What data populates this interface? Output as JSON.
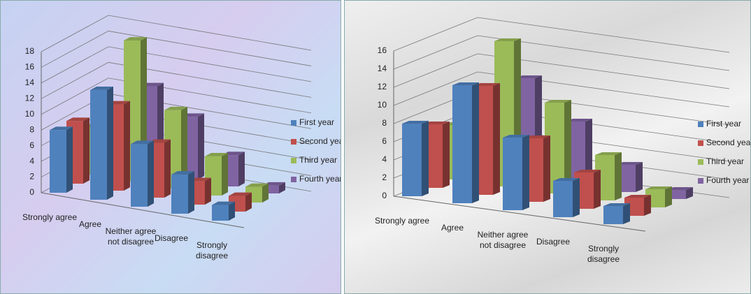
{
  "chart_data": [
    {
      "type": "bar",
      "legend": "right",
      "categories": [
        "Strongly agree",
        "Agree",
        "Neither agree not disagree",
        "Disagree",
        "Strongly disagree"
      ],
      "ylim": [
        0,
        18
      ],
      "yticks": [
        0,
        2,
        4,
        6,
        8,
        10,
        12,
        14,
        16,
        18
      ],
      "grid": true,
      "series": [
        {
          "name": "First year",
          "color": "#4f81bd",
          "values": [
            8,
            14,
            8,
            5,
            2
          ]
        },
        {
          "name": "Second year",
          "color": "#c0504d",
          "values": [
            8,
            11,
            7,
            3,
            2
          ]
        },
        {
          "name": "Third year",
          "color": "#9bbb59",
          "values": [
            6,
            18,
            10,
            5,
            2
          ]
        },
        {
          "name": "Fourth year",
          "color": "#8064a2",
          "values": [
            5,
            11,
            8,
            4,
            1
          ]
        }
      ]
    },
    {
      "type": "bar",
      "legend": "right",
      "categories": [
        "Strongly agree",
        "Agree",
        "Neither agree not disagree",
        "Disagree",
        "Strongly disagree"
      ],
      "ylim": [
        0,
        16
      ],
      "yticks": [
        0,
        2,
        4,
        6,
        8,
        10,
        12,
        14,
        16
      ],
      "grid": true,
      "series": [
        {
          "name": "First year",
          "color": "#4f81bd",
          "values": [
            8,
            13,
            8,
            4,
            2
          ]
        },
        {
          "name": "Second year",
          "color": "#c0504d",
          "values": [
            7,
            12,
            7,
            4,
            2
          ]
        },
        {
          "name": "Third year",
          "color": "#9bbb59",
          "values": [
            6,
            16,
            10,
            5,
            2
          ]
        },
        {
          "name": "Fourth year",
          "color": "#8064a2",
          "values": [
            5,
            11,
            7,
            3,
            1
          ]
        }
      ]
    }
  ]
}
